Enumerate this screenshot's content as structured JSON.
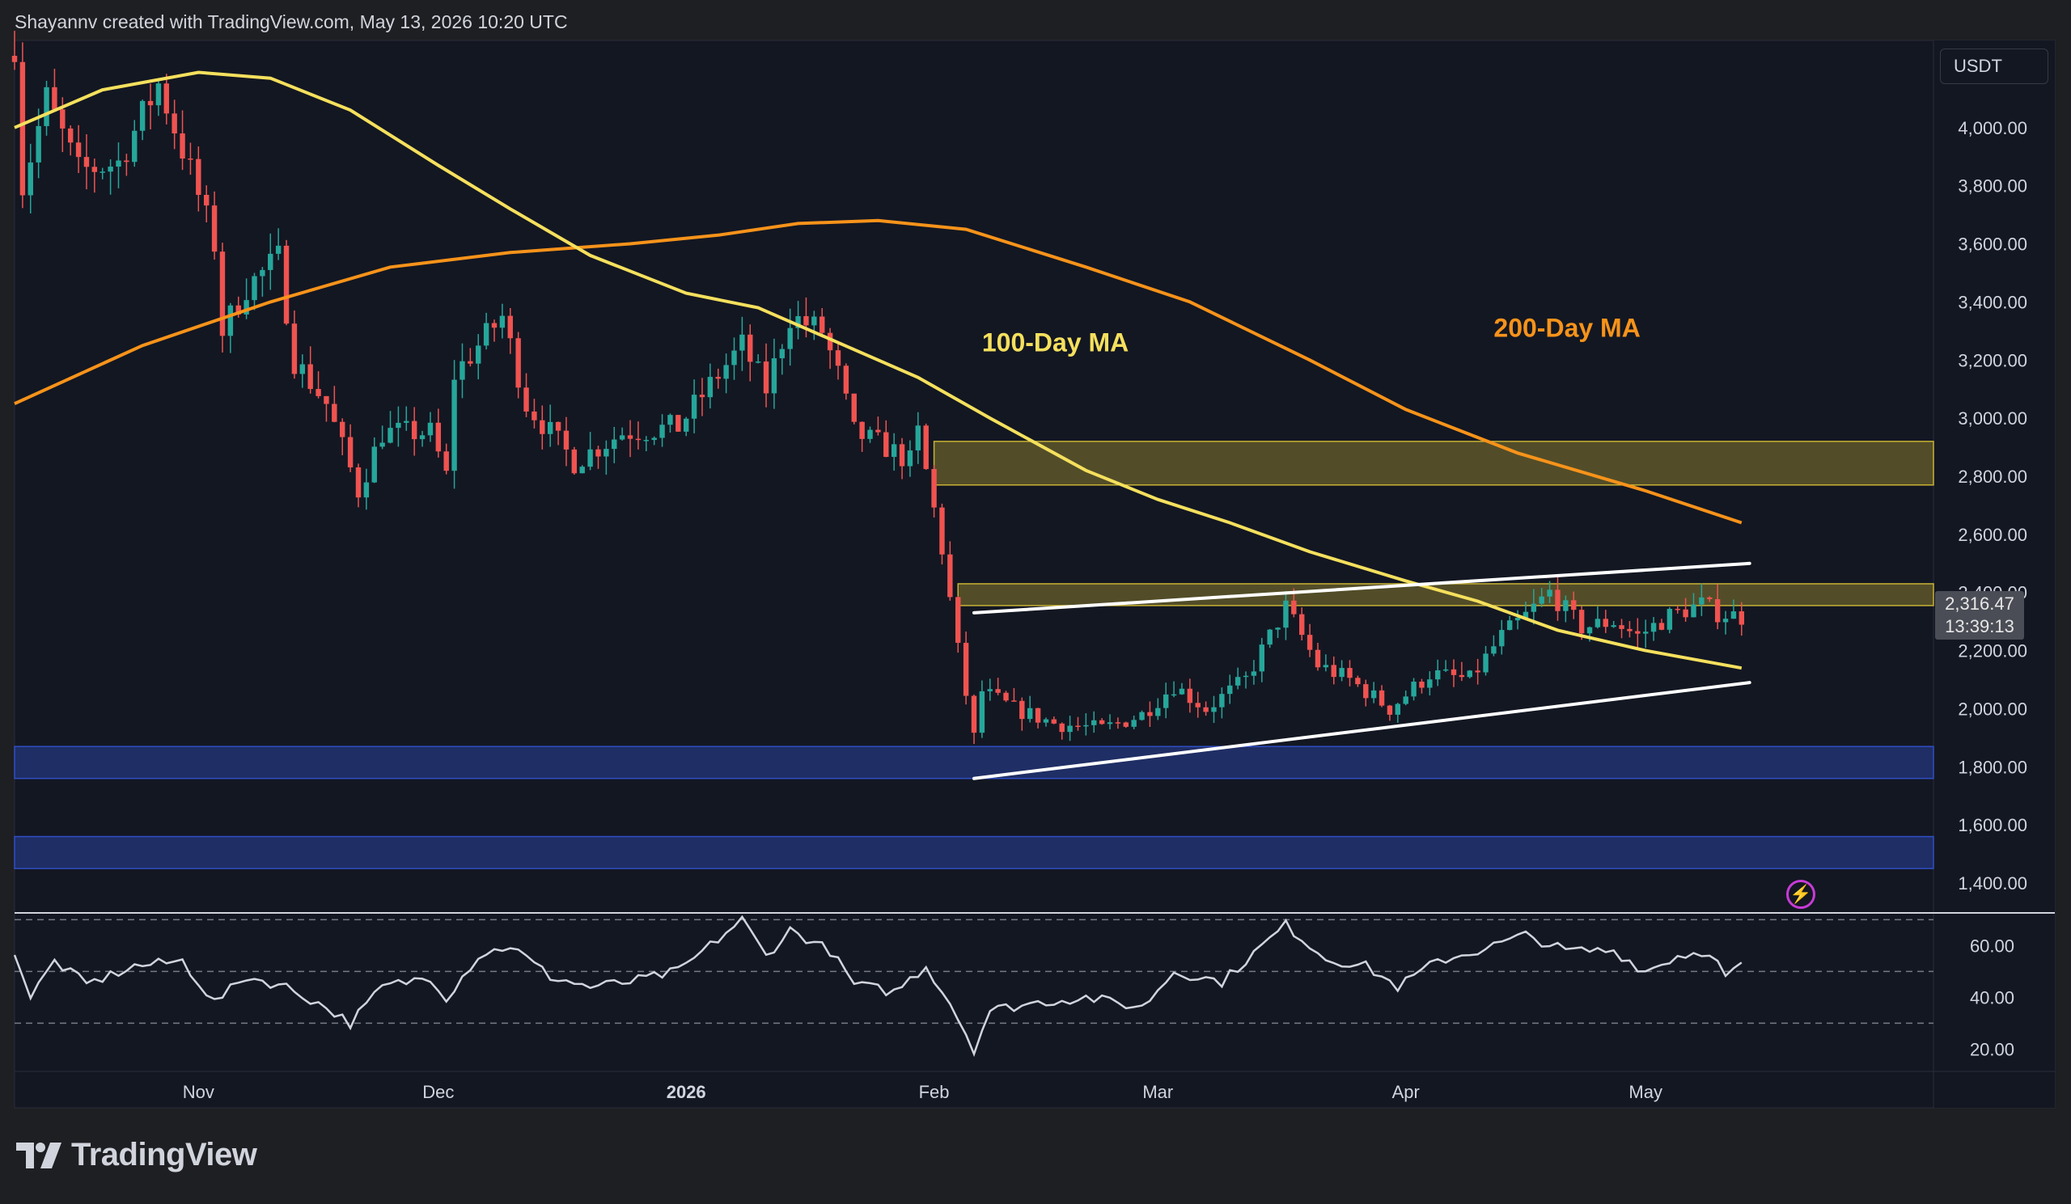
{
  "header": {
    "attribution": "Shayannv created with TradingView.com, May 13, 2026 10:20 UTC"
  },
  "footer": {
    "brand": "TradingView"
  },
  "currency": "USDT",
  "last_price": "2,316.47",
  "countdown": "13:39:13",
  "colors": {
    "background": "#131722",
    "up": "#26a69a",
    "down": "#ef5350",
    "ma100": "#f5e05d",
    "ma200": "#f7931a",
    "resistance_zone": "#c8b234",
    "support_zone": "#2f4fc4",
    "rsi": "#d1d4dc"
  },
  "chart_data": [
    {
      "type": "candlestick",
      "title": "",
      "currency": "USDT",
      "x_start": "2025-10-09",
      "x_end": "2026-05-13",
      "x_range": [
        "2025-10-09",
        "2026-06-06"
      ],
      "x_ticks": [
        {
          "date": "2025-11-01",
          "label": "Nov",
          "bold": false
        },
        {
          "date": "2025-12-01",
          "label": "Dec",
          "bold": false
        },
        {
          "date": "2026-01-01",
          "label": "2026",
          "bold": true
        },
        {
          "date": "2026-02-01",
          "label": "Feb",
          "bold": false
        },
        {
          "date": "2026-03-01",
          "label": "Mar",
          "bold": false
        },
        {
          "date": "2026-04-01",
          "label": "Apr",
          "bold": false
        },
        {
          "date": "2026-05-01",
          "label": "May",
          "bold": false
        }
      ],
      "ylim": [
        1300,
        4300
      ],
      "y_ticks": [
        1400,
        1600,
        1800,
        2000,
        2200,
        2400,
        2600,
        2800,
        3000,
        3200,
        3400,
        3600,
        3800,
        4000
      ],
      "y_tick_labels": [
        "1,400.00",
        "1,600.00",
        "1,800.00",
        "2,000.00",
        "2,200.00",
        "2,400.00",
        "2,600.00",
        "2,800.00",
        "3,000.00",
        "3,200.00",
        "3,400.00",
        "3,600.00",
        "3,800.00",
        "4,000.00"
      ],
      "close_anchors": [
        [
          "2025-10-09",
          4290
        ],
        [
          "2025-10-10",
          3800
        ],
        [
          "2025-10-13",
          4100
        ],
        [
          "2025-10-17",
          3850
        ],
        [
          "2025-10-22",
          3880
        ],
        [
          "2025-10-27",
          4150
        ],
        [
          "2025-10-31",
          3850
        ],
        [
          "2025-11-03",
          3600
        ],
        [
          "2025-11-04",
          3300
        ],
        [
          "2025-11-07",
          3450
        ],
        [
          "2025-11-11",
          3550
        ],
        [
          "2025-11-13",
          3200
        ],
        [
          "2025-11-17",
          3050
        ],
        [
          "2025-11-21",
          2750
        ],
        [
          "2025-11-24",
          2950
        ],
        [
          "2025-11-30",
          2950
        ],
        [
          "2025-12-02",
          2800
        ],
        [
          "2025-12-03",
          3150
        ],
        [
          "2025-12-09",
          3350
        ],
        [
          "2025-12-12",
          3050
        ],
        [
          "2025-12-18",
          2850
        ],
        [
          "2025-12-24",
          2950
        ],
        [
          "2025-12-31",
          2970
        ],
        [
          "2026-01-05",
          3150
        ],
        [
          "2026-01-08",
          3250
        ],
        [
          "2026-01-11",
          3100
        ],
        [
          "2026-01-14",
          3350
        ],
        [
          "2026-01-18",
          3300
        ],
        [
          "2026-01-20",
          3150
        ],
        [
          "2026-01-22",
          2950
        ],
        [
          "2026-01-26",
          2900
        ],
        [
          "2026-01-29",
          2850
        ],
        [
          "2026-01-30",
          2950
        ],
        [
          "2026-02-02",
          2550
        ],
        [
          "2026-02-04",
          2200
        ],
        [
          "2026-02-06",
          1900
        ],
        [
          "2026-02-07",
          2060
        ],
        [
          "2026-02-11",
          2000
        ],
        [
          "2026-02-16",
          1950
        ],
        [
          "2026-02-22",
          1930
        ],
        [
          "2026-02-27",
          1980
        ],
        [
          "2026-03-03",
          2080
        ],
        [
          "2026-03-07",
          2000
        ],
        [
          "2026-03-12",
          2100
        ],
        [
          "2026-03-17",
          2350
        ],
        [
          "2026-03-21",
          2150
        ],
        [
          "2026-03-25",
          2100
        ],
        [
          "2026-03-30",
          2000
        ],
        [
          "2026-04-04",
          2120
        ],
        [
          "2026-04-09",
          2100
        ],
        [
          "2026-04-13",
          2250
        ],
        [
          "2026-04-16",
          2320
        ],
        [
          "2026-04-19",
          2400
        ],
        [
          "2026-04-23",
          2280
        ],
        [
          "2026-04-27",
          2300
        ],
        [
          "2026-04-30",
          2250
        ],
        [
          "2026-05-04",
          2320
        ],
        [
          "2026-05-08",
          2360
        ],
        [
          "2026-05-10",
          2330
        ],
        [
          "2026-05-13",
          2316
        ]
      ],
      "ma100": [
        [
          "2025-10-09",
          4000
        ],
        [
          "2025-10-20",
          4130
        ],
        [
          "2025-11-01",
          4190
        ],
        [
          "2025-11-10",
          4170
        ],
        [
          "2025-11-20",
          4060
        ],
        [
          "2025-12-01",
          3870
        ],
        [
          "2025-12-10",
          3720
        ],
        [
          "2025-12-20",
          3560
        ],
        [
          "2026-01-01",
          3430
        ],
        [
          "2026-01-10",
          3380
        ],
        [
          "2026-01-20",
          3260
        ],
        [
          "2026-01-30",
          3140
        ],
        [
          "2026-02-08",
          3000
        ],
        [
          "2026-02-20",
          2820
        ],
        [
          "2026-03-01",
          2720
        ],
        [
          "2026-03-10",
          2640
        ],
        [
          "2026-03-20",
          2540
        ],
        [
          "2026-04-01",
          2440
        ],
        [
          "2026-04-10",
          2370
        ],
        [
          "2026-04-20",
          2270
        ],
        [
          "2026-05-01",
          2200
        ],
        [
          "2026-05-13",
          2140
        ]
      ],
      "ma200": [
        [
          "2025-10-09",
          3050
        ],
        [
          "2025-10-25",
          3250
        ],
        [
          "2025-11-10",
          3400
        ],
        [
          "2025-11-25",
          3520
        ],
        [
          "2025-12-10",
          3570
        ],
        [
          "2025-12-25",
          3600
        ],
        [
          "2026-01-05",
          3630
        ],
        [
          "2026-01-15",
          3670
        ],
        [
          "2026-01-25",
          3680
        ],
        [
          "2026-02-05",
          3650
        ],
        [
          "2026-02-20",
          3520
        ],
        [
          "2026-03-05",
          3400
        ],
        [
          "2026-03-20",
          3200
        ],
        [
          "2026-04-01",
          3030
        ],
        [
          "2026-04-15",
          2880
        ],
        [
          "2026-05-01",
          2750
        ],
        [
          "2026-05-13",
          2640
        ]
      ],
      "zones": [
        {
          "from": 2770,
          "to": 2920,
          "x_from": "2026-02-01",
          "color": "#c8b234"
        },
        {
          "from": 2355,
          "to": 2430,
          "x_from": "2026-02-04",
          "color": "#c8b234"
        },
        {
          "from": 1760,
          "to": 1870,
          "x_from": "2025-10-09",
          "color": "#2f4fc4"
        },
        {
          "from": 1450,
          "to": 1560,
          "x_from": "2025-10-09",
          "color": "#2f4fc4"
        }
      ],
      "trendlines": [
        {
          "from": [
            "2026-02-06",
            2330
          ],
          "to": [
            "2026-05-14",
            2500
          ],
          "color": "#ffffff"
        },
        {
          "from": [
            "2026-02-06",
            1760
          ],
          "to": [
            "2026-05-14",
            2090
          ],
          "color": "#ffffff"
        }
      ],
      "annotations": [
        {
          "text": "100-Day MA",
          "date": "2026-02-07",
          "price": 3230,
          "color": "#f5e05d"
        },
        {
          "text": "200-Day MA",
          "date": "2026-04-12",
          "price": 3280,
          "color": "#f7931a"
        }
      ]
    },
    {
      "type": "line",
      "title": "",
      "ylim": [
        12,
        72
      ],
      "y_ticks": [
        20,
        40,
        60
      ],
      "y_tick_labels": [
        "20.00",
        "40.00",
        "60.00"
      ],
      "reference_lines": [
        70,
        50,
        30
      ],
      "rsi_anchors": [
        [
          "2025-10-09",
          58
        ],
        [
          "2025-10-11",
          40
        ],
        [
          "2025-10-14",
          54
        ],
        [
          "2025-10-18",
          45
        ],
        [
          "2025-10-24",
          52
        ],
        [
          "2025-10-30",
          54
        ],
        [
          "2025-11-03",
          38
        ],
        [
          "2025-11-07",
          48
        ],
        [
          "2025-11-12",
          44
        ],
        [
          "2025-11-17",
          36
        ],
        [
          "2025-11-20",
          30
        ],
        [
          "2025-11-24",
          44
        ],
        [
          "2025-11-30",
          48
        ],
        [
          "2025-12-02",
          40
        ],
        [
          "2025-12-06",
          56
        ],
        [
          "2025-12-10",
          60
        ],
        [
          "2025-12-15",
          48
        ],
        [
          "2025-12-20",
          44
        ],
        [
          "2025-12-25",
          46
        ],
        [
          "2025-12-31",
          50
        ],
        [
          "2026-01-04",
          60
        ],
        [
          "2026-01-08",
          70
        ],
        [
          "2026-01-11",
          56
        ],
        [
          "2026-01-14",
          66
        ],
        [
          "2026-01-19",
          58
        ],
        [
          "2026-01-22",
          45
        ],
        [
          "2026-01-27",
          42
        ],
        [
          "2026-01-31",
          52
        ],
        [
          "2026-02-03",
          38
        ],
        [
          "2026-02-06",
          20
        ],
        [
          "2026-02-08",
          35
        ],
        [
          "2026-02-14",
          38
        ],
        [
          "2026-02-20",
          40
        ],
        [
          "2026-02-27",
          36
        ],
        [
          "2026-03-03",
          50
        ],
        [
          "2026-03-09",
          46
        ],
        [
          "2026-03-17",
          68
        ],
        [
          "2026-03-22",
          55
        ],
        [
          "2026-03-27",
          52
        ],
        [
          "2026-03-31",
          44
        ],
        [
          "2026-04-05",
          54
        ],
        [
          "2026-04-10",
          58
        ],
        [
          "2026-04-16",
          64
        ],
        [
          "2026-04-21",
          58
        ],
        [
          "2026-04-27",
          58
        ],
        [
          "2026-05-01",
          50
        ],
        [
          "2026-05-05",
          56
        ],
        [
          "2026-05-09",
          58
        ],
        [
          "2026-05-11",
          48
        ],
        [
          "2026-05-13",
          52
        ]
      ]
    }
  ]
}
